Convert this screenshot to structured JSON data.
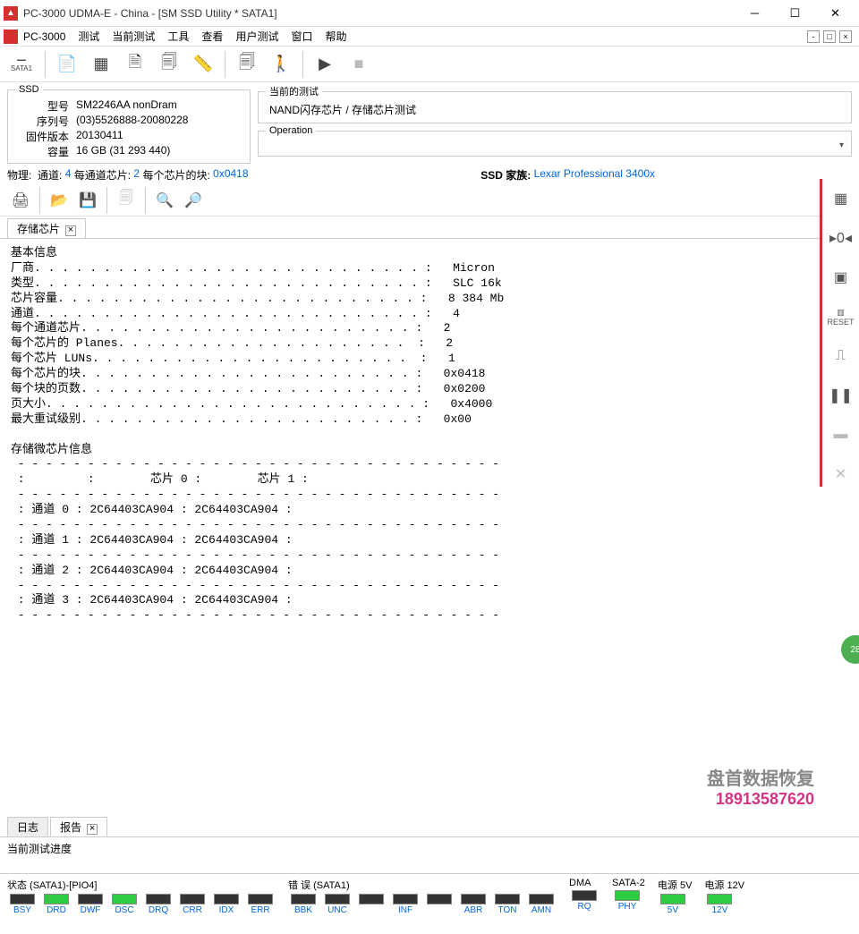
{
  "window": {
    "title": "PC-3000 UDMA-E - China - [SM SSD Utility * SATA1]"
  },
  "menu": {
    "app": "PC-3000",
    "items": [
      "测试",
      "当前测试",
      "工具",
      "查看",
      "用户测试",
      "窗口",
      "帮助"
    ]
  },
  "toolbar1": {
    "sata_label": "SATA1"
  },
  "ssd": {
    "legend": "SSD",
    "model_label": "型号",
    "model": "SM2246AA nonDram",
    "serial_label": "序列号",
    "serial": "(03)5526888-20080228",
    "fw_label": "固件版本",
    "fw": "20130411",
    "cap_label": "容量",
    "cap": "16 GB (31 293 440)"
  },
  "current_test": {
    "legend": "当前的测试",
    "value": "NAND闪存芯片 / 存储芯片测试"
  },
  "operation": {
    "legend": "Operation",
    "value": ""
  },
  "phys": {
    "label": "物理:",
    "ch_label": "通道:",
    "ch": "4",
    "chips_label": "每通道芯片:",
    "chips": "2",
    "blocks_label": "每个芯片的块:",
    "blocks": "0x0418",
    "family_label": "SSD 家族:",
    "family": "Lexar Professional 3400x"
  },
  "tab": {
    "label": "存储芯片"
  },
  "info": {
    "section1": "基本信息",
    "l1": "厂商. . . . . . . . . . . . . . . . . . . . . . . . . . . . :   Micron",
    "l2": "类型. . . . . . . . . . . . . . . . . . . . . . . . . . . . :   SLC 16k",
    "l3": "芯片容量. . . . . . . . . . . . . . . . . . . . . . . . . . :   8 384 Mb",
    "l4": "通道. . . . . . . . . . . . . . . . . . . . . . . . . . . . :   4",
    "l5": "每个通道芯片. . . . . . . . . . . . . . . . . . . . . . . . :   2",
    "l6": "每个芯片的 Planes. . . . . . . . . . . . . . . . . . . . .  :   2",
    "l7": "每个芯片 LUNs. . . . . . . . . . . . . . . . . . . . . . .  :   1",
    "l8": "每个芯片的块. . . . . . . . . . . . . . . . . . . . . . . . :   0x0418",
    "l9": "每个块的页数. . . . . . . . . . . . . . . . . . . . . . . . :   0x0200",
    "l10": "页大小. . . . . . . . . . . . . . . . . . . . . . . . . . . :   0x4000",
    "l11": "最大重试级别. . . . . . . . . . . . . . . . . . . . . . . . :   0x00",
    "section2": "存储微芯片信息",
    "hdr": " - - - - - - - - - - - - - - - - - - - - - - - - - - - - - - - - - - - ",
    "th": " :         :        芯片 0 :        芯片 1 :",
    "r0": " : 通道 0 : 2C64403CA904 : 2C64403CA904 :",
    "r1": " : 通道 1 : 2C64403CA904 : 2C64403CA904 :",
    "r2": " : 通道 2 : 2C64403CA904 : 2C64403CA904 :",
    "r3": " : 通道 3 : 2C64403CA904 : 2C64403CA904 :"
  },
  "bottom_tabs": {
    "t1": "日志",
    "t2": "报告"
  },
  "progress": {
    "label": "当前测试进度"
  },
  "status": {
    "g1": "状态 (SATA1)-[PIO4]",
    "g1_leds": [
      {
        "lbl": "BSY",
        "on": false
      },
      {
        "lbl": "DRD",
        "on": true
      },
      {
        "lbl": "DWF",
        "on": false
      },
      {
        "lbl": "DSC",
        "on": true
      },
      {
        "lbl": "DRQ",
        "on": false
      },
      {
        "lbl": "CRR",
        "on": false
      },
      {
        "lbl": "IDX",
        "on": false
      },
      {
        "lbl": "ERR",
        "on": false
      }
    ],
    "g2": "错 误 (SATA1)",
    "g2_leds": [
      {
        "lbl": "BBK",
        "on": false
      },
      {
        "lbl": "UNC",
        "on": false
      },
      {
        "lbl": "",
        "on": false
      },
      {
        "lbl": "INF",
        "on": false
      },
      {
        "lbl": "",
        "on": false
      },
      {
        "lbl": "ABR",
        "on": false
      },
      {
        "lbl": "TON",
        "on": false
      },
      {
        "lbl": "AMN",
        "on": false
      }
    ],
    "g3": "DMA",
    "g3_leds": [
      {
        "lbl": "RQ",
        "on": false
      }
    ],
    "g4": "SATA-2",
    "g4_leds": [
      {
        "lbl": "PHY",
        "on": true
      }
    ],
    "g5": "电源 5V",
    "g5_leds": [
      {
        "lbl": "5V",
        "on": true
      }
    ],
    "g6": "电源 12V",
    "g6_leds": [
      {
        "lbl": "12V",
        "on": true
      }
    ]
  },
  "watermark": {
    "line1": "盘首数据恢复",
    "line2": "18913587620"
  },
  "sidebar": {
    "reset": "RESET"
  },
  "badge": "28"
}
